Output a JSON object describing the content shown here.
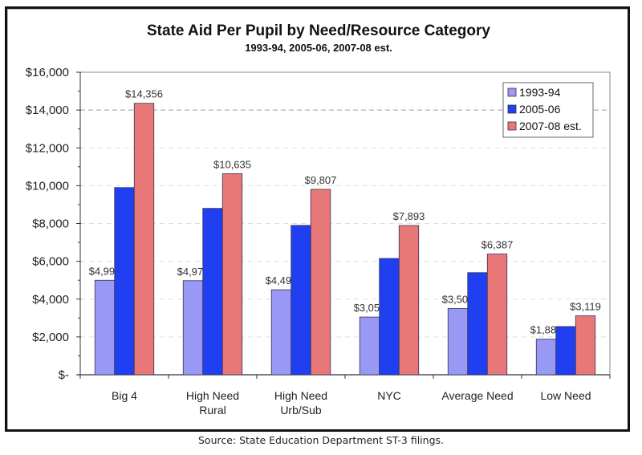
{
  "chart_data": {
    "type": "bar",
    "title": "State Aid Per Pupil by Need/Resource Category",
    "subtitle": "1993-94, 2005-06, 2007-08 est.",
    "xlabel": "",
    "ylabel": "",
    "categories": [
      [
        "Big 4"
      ],
      [
        "High Need",
        "Rural"
      ],
      [
        "High Need",
        "Urb/Sub"
      ],
      [
        "NYC"
      ],
      [
        "Average Need"
      ],
      [
        "Low Need"
      ]
    ],
    "series": [
      {
        "name": "1993-94",
        "color": "#9999f5",
        "values": [
          4997,
          4975,
          4496,
          3052,
          3507,
          1883
        ],
        "labels": [
          "$4,997",
          "$4,975",
          "$4,496",
          "$3,052",
          "$3,507",
          "$1,883"
        ]
      },
      {
        "name": "2005-06",
        "color": "#1f3ff0",
        "values": [
          9900,
          8800,
          7900,
          6150,
          5400,
          2550
        ],
        "labels": [
          null,
          null,
          null,
          null,
          null,
          null
        ]
      },
      {
        "name": "2007-08 est.",
        "color": "#e87878",
        "values": [
          14356,
          10635,
          9807,
          7893,
          6387,
          3119
        ],
        "labels": [
          "$14,356",
          "$10,635",
          "$9,807",
          "$7,893",
          "$6,387",
          "$3,119"
        ]
      }
    ],
    "ylim": [
      0,
      16000
    ],
    "yticks": [
      0,
      2000,
      4000,
      6000,
      8000,
      10000,
      12000,
      14000,
      16000
    ],
    "ytick_labels": [
      "$-",
      "$2,000",
      "$4,000",
      "$6,000",
      "$8,000",
      "$10,000",
      "$12,000",
      "$14,000",
      "$16,000"
    ],
    "grid": true,
    "highlight_gridline": 14000,
    "legend_position": "top-right",
    "source": "Source: State Education Department ST-3 filings."
  }
}
